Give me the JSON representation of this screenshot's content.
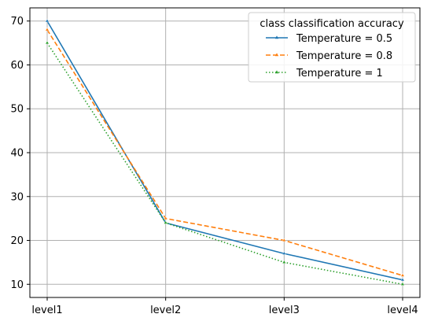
{
  "chart_data": {
    "type": "line",
    "categories": [
      "level1",
      "level2",
      "level3",
      "level4"
    ],
    "series": [
      {
        "name": "Temperature = 0.5",
        "values": [
          70,
          24,
          17,
          11
        ],
        "color": "#1f77b4",
        "dash": "solid",
        "marker": "triangle"
      },
      {
        "name": "Temperature = 0.8",
        "values": [
          68,
          25,
          20,
          12
        ],
        "color": "#ff7f0e",
        "dash": "dashed",
        "marker": "triangle"
      },
      {
        "name": "Temperature = 1",
        "values": [
          65,
          24,
          15,
          10
        ],
        "color": "#2ca02c",
        "dash": "dotted",
        "marker": "triangle"
      }
    ],
    "y_ticks": [
      10,
      20,
      30,
      40,
      50,
      60,
      70
    ],
    "ylim": [
      7.0,
      73.0
    ],
    "grid": true,
    "legend": {
      "title": "class classification accuracy",
      "position": "top-right"
    }
  }
}
